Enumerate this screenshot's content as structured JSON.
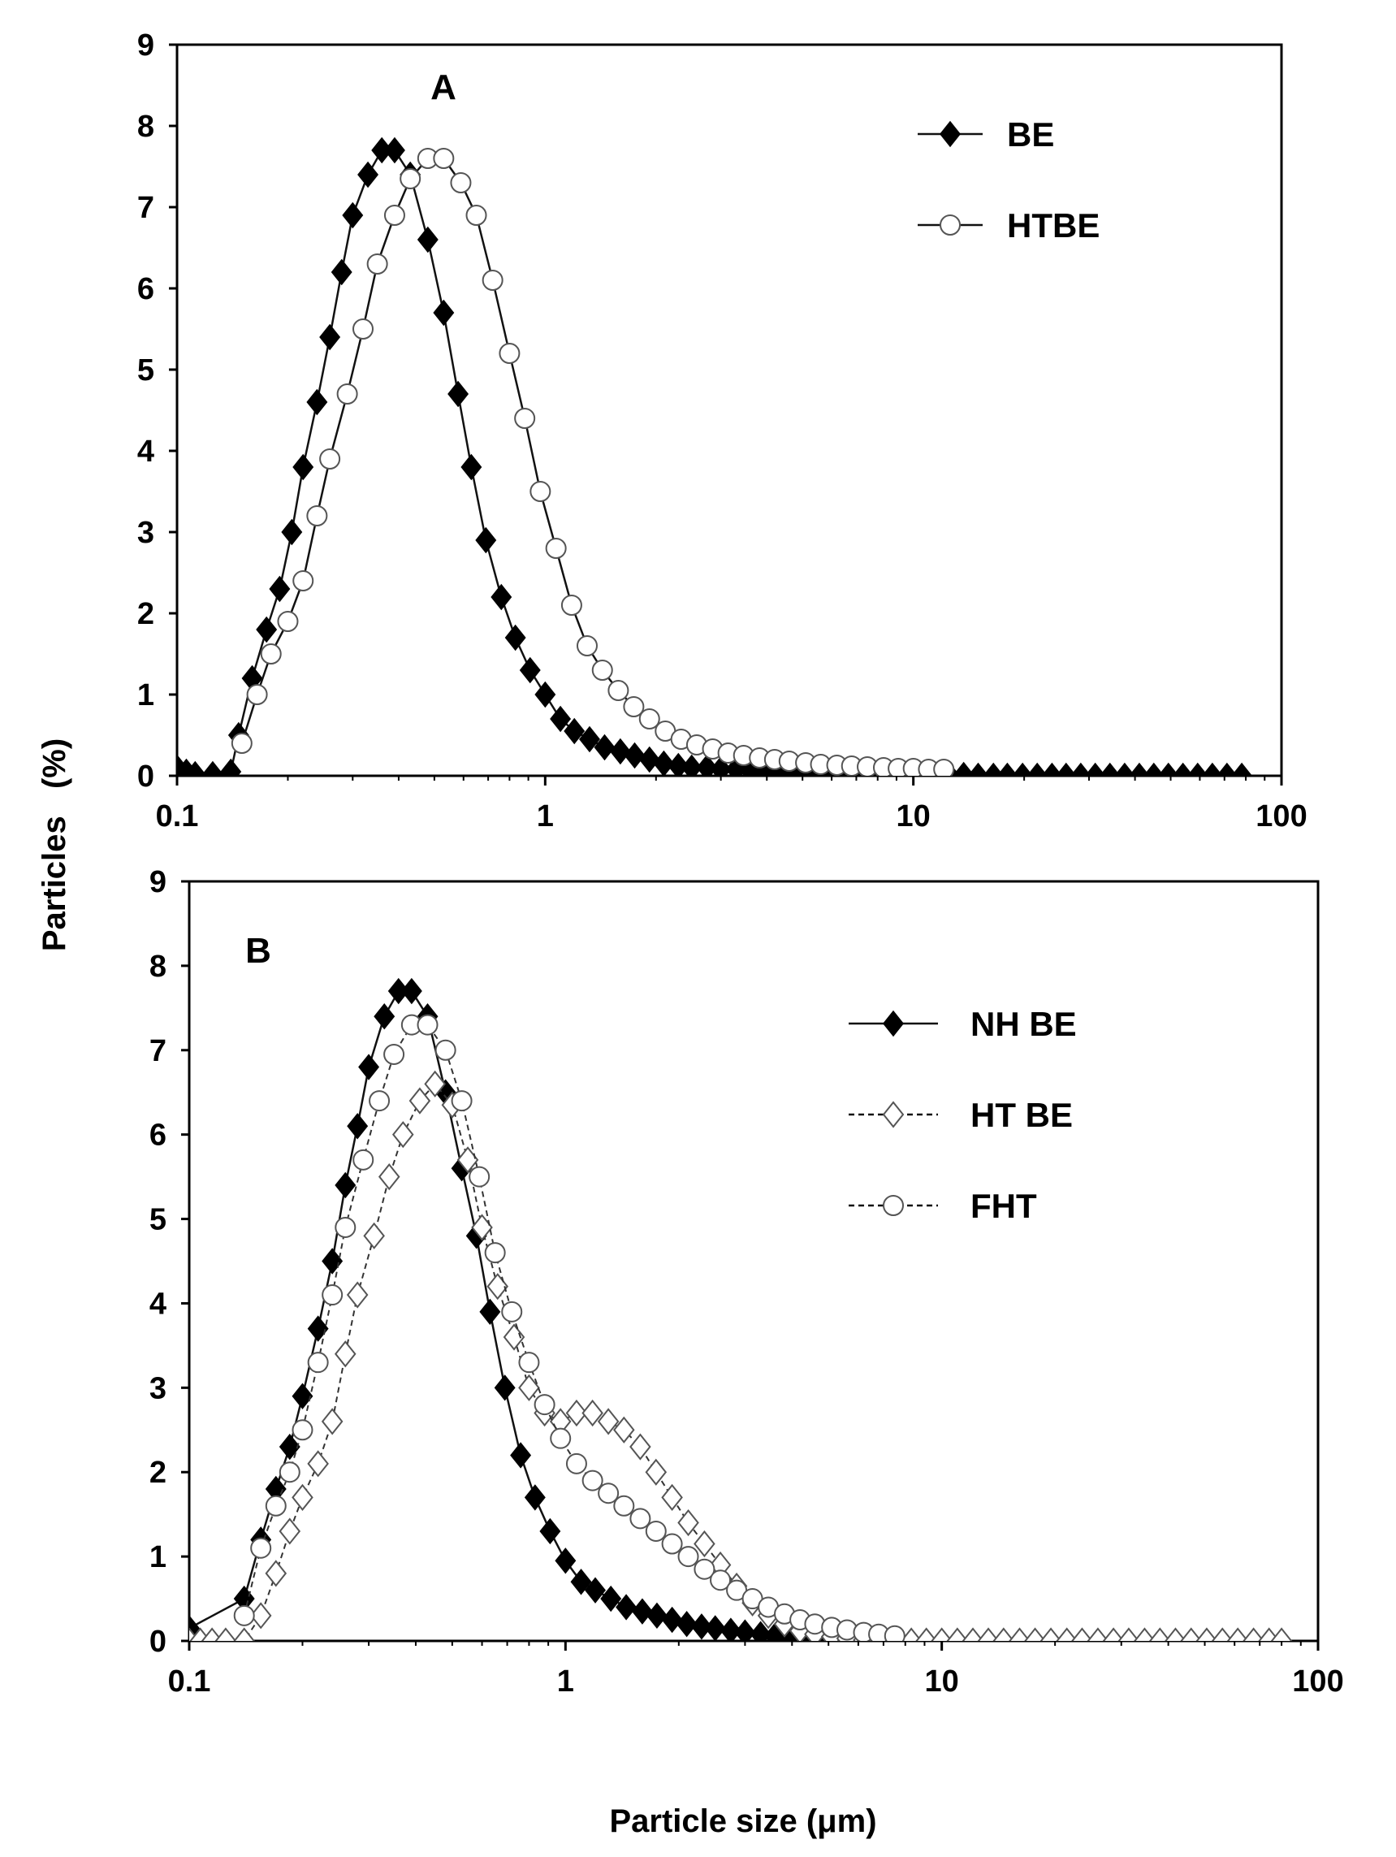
{
  "chart_data": [
    {
      "type": "line",
      "panel_label": "A",
      "xscale": "log",
      "xlim": [
        0.1,
        100
      ],
      "ylim": [
        0,
        9
      ],
      "xticks": [
        {
          "value": 0.1,
          "label": "0.1"
        },
        {
          "value": 1,
          "label": "1"
        },
        {
          "value": 10,
          "label": "10"
        },
        {
          "value": 100,
          "label": "100"
        }
      ],
      "yticks": [
        {
          "value": 0,
          "label": "0"
        },
        {
          "value": 1,
          "label": "1"
        },
        {
          "value": 2,
          "label": "2"
        },
        {
          "value": 3,
          "label": "3"
        },
        {
          "value": 4,
          "label": "4"
        },
        {
          "value": 5,
          "label": "5"
        },
        {
          "value": 6,
          "label": "6"
        },
        {
          "value": 7,
          "label": "7"
        },
        {
          "value": 8,
          "label": "8"
        },
        {
          "value": 9,
          "label": "9"
        }
      ],
      "legend_position": "top-right",
      "series": [
        {
          "name": "BE",
          "marker": "diamond-filled",
          "line": "solid",
          "x": [
            0.1,
            0.106,
            0.112,
            0.125,
            0.14,
            0.147,
            0.16,
            0.175,
            0.19,
            0.205,
            0.22,
            0.24,
            0.26,
            0.28,
            0.3,
            0.33,
            0.36,
            0.39,
            0.43,
            0.48,
            0.53,
            0.58,
            0.63,
            0.69,
            0.76,
            0.83,
            0.91,
            1.0,
            1.1,
            1.2,
            1.32,
            1.45,
            1.6,
            1.75,
            1.92,
            2.1,
            2.3,
            2.5,
            2.75,
            3.0,
            3.3,
            3.6,
            3.9,
            4.3,
            4.7,
            5.1,
            5.6,
            6.1,
            6.7,
            7.3,
            8.0,
            8.7,
            9.5,
            10.4,
            11.4,
            12.5,
            13.7,
            15.0,
            16.5,
            18.0,
            19.8,
            21.7,
            23.8,
            26.0,
            28.5,
            31.2,
            34.2,
            37.5,
            41.1,
            45.0,
            49.3,
            54.0,
            59.2,
            64.9,
            71.1,
            78.0
          ],
          "values": [
            0.1,
            0.05,
            0.02,
            0.02,
            0.05,
            0.5,
            1.2,
            1.8,
            2.3,
            3.0,
            3.8,
            4.6,
            5.4,
            6.2,
            6.9,
            7.4,
            7.7,
            7.7,
            7.4,
            6.6,
            5.7,
            4.7,
            3.8,
            2.9,
            2.2,
            1.7,
            1.3,
            1.0,
            0.7,
            0.55,
            0.45,
            0.35,
            0.3,
            0.25,
            0.2,
            0.15,
            0.12,
            0.1,
            0.1,
            0.08,
            0.08,
            0.07,
            0.06,
            0.05,
            0.05,
            0.04,
            0.03,
            0.02,
            0.02,
            0.02,
            0.01,
            0.01,
            0.01,
            0.01,
            0.01,
            0.01,
            0.01,
            0.0,
            0.0,
            0.0,
            0.0,
            0.0,
            0.0,
            0.0,
            0.0,
            0.0,
            0.0,
            0.0,
            0.0,
            0.0,
            0.0,
            0.0,
            0.0,
            0.0,
            0.0,
            0.0
          ]
        },
        {
          "name": "HTBE",
          "marker": "circle-open",
          "line": "solid",
          "x": [
            0.15,
            0.165,
            0.18,
            0.2,
            0.22,
            0.24,
            0.26,
            0.29,
            0.32,
            0.35,
            0.39,
            0.43,
            0.48,
            0.53,
            0.59,
            0.65,
            0.72,
            0.8,
            0.88,
            0.97,
            1.07,
            1.18,
            1.3,
            1.43,
            1.58,
            1.74,
            1.92,
            2.12,
            2.34,
            2.58,
            2.85,
            3.14,
            3.46,
            3.82,
            4.2,
            4.6,
            5.1,
            5.6,
            6.2,
            6.8,
            7.5,
            8.3,
            9.1,
            10.0,
            11.0,
            12.1
          ],
          "values": [
            0.4,
            1.0,
            1.5,
            1.9,
            2.4,
            3.2,
            3.9,
            4.7,
            5.5,
            6.3,
            6.9,
            7.35,
            7.6,
            7.6,
            7.3,
            6.9,
            6.1,
            5.2,
            4.4,
            3.5,
            2.8,
            2.1,
            1.6,
            1.3,
            1.05,
            0.85,
            0.7,
            0.55,
            0.45,
            0.38,
            0.33,
            0.28,
            0.25,
            0.22,
            0.2,
            0.18,
            0.16,
            0.14,
            0.13,
            0.12,
            0.11,
            0.1,
            0.09,
            0.09,
            0.08,
            0.08
          ]
        }
      ]
    },
    {
      "type": "line",
      "panel_label": "B",
      "xscale": "log",
      "xlim": [
        0.1,
        100
      ],
      "ylim": [
        0,
        9
      ],
      "xlabel": "Particle size (μm)",
      "xticks": [
        {
          "value": 0.1,
          "label": "0.1"
        },
        {
          "value": 1,
          "label": "1"
        },
        {
          "value": 10,
          "label": "10"
        },
        {
          "value": 100,
          "label": "100"
        }
      ],
      "yticks": [
        {
          "value": 0,
          "label": "0"
        },
        {
          "value": 1,
          "label": "1"
        },
        {
          "value": 2,
          "label": "2"
        },
        {
          "value": 3,
          "label": "3"
        },
        {
          "value": 4,
          "label": "4"
        },
        {
          "value": 5,
          "label": "5"
        },
        {
          "value": 6,
          "label": "6"
        },
        {
          "value": 7,
          "label": "7"
        },
        {
          "value": 8,
          "label": "8"
        },
        {
          "value": 9,
          "label": "9"
        }
      ],
      "legend_position": "top-right",
      "series": [
        {
          "name": "NH BE",
          "marker": "diamond-filled",
          "line": "solid",
          "x": [
            0.1,
            0.14,
            0.155,
            0.17,
            0.185,
            0.2,
            0.22,
            0.24,
            0.26,
            0.28,
            0.3,
            0.33,
            0.36,
            0.39,
            0.43,
            0.48,
            0.53,
            0.58,
            0.63,
            0.69,
            0.76,
            0.83,
            0.91,
            1.0,
            1.1,
            1.2,
            1.32,
            1.45,
            1.6,
            1.75,
            1.92,
            2.1,
            2.3,
            2.5,
            2.75,
            3.0,
            3.3,
            3.6,
            3.9,
            4.3,
            4.7,
            5.1,
            5.6,
            6.1,
            6.7,
            7.3
          ],
          "values": [
            0.15,
            0.5,
            1.2,
            1.8,
            2.3,
            2.9,
            3.7,
            4.5,
            5.4,
            6.1,
            6.8,
            7.4,
            7.7,
            7.7,
            7.4,
            6.5,
            5.6,
            4.8,
            3.9,
            3.0,
            2.2,
            1.7,
            1.3,
            0.95,
            0.7,
            0.6,
            0.5,
            0.4,
            0.35,
            0.3,
            0.25,
            0.2,
            0.17,
            0.15,
            0.12,
            0.1,
            0.08,
            0.06,
            0.05,
            0.04,
            0.03,
            0.02,
            0.01,
            0.01,
            0.0,
            0.0
          ]
        },
        {
          "name": "HT BE",
          "marker": "diamond-open",
          "line": "dashed",
          "x": [
            0.1,
            0.107,
            0.115,
            0.125,
            0.14,
            0.155,
            0.17,
            0.185,
            0.2,
            0.22,
            0.24,
            0.26,
            0.28,
            0.31,
            0.34,
            0.37,
            0.41,
            0.45,
            0.5,
            0.55,
            0.6,
            0.66,
            0.73,
            0.8,
            0.88,
            0.97,
            1.07,
            1.18,
            1.3,
            1.43,
            1.58,
            1.74,
            1.92,
            2.12,
            2.34,
            2.58,
            2.85,
            3.14,
            3.46,
            3.82,
            4.2,
            4.6,
            5.1,
            5.6,
            6.2,
            6.8,
            7.5,
            8.3,
            9.1,
            10.0,
            11.0,
            12.1,
            13.3,
            14.6,
            16.1,
            17.7,
            19.5,
            21.5,
            23.6,
            26.0,
            28.6,
            31.4,
            34.6,
            38.0,
            41.8,
            46.0,
            50.6,
            55.7,
            61.2,
            67.4,
            74.1,
            80.0
          ],
          "values": [
            0.0,
            0.0,
            0.0,
            0.0,
            0.0,
            0.3,
            0.8,
            1.3,
            1.7,
            2.1,
            2.6,
            3.4,
            4.1,
            4.8,
            5.5,
            6.0,
            6.4,
            6.6,
            6.35,
            5.7,
            4.9,
            4.2,
            3.6,
            3.0,
            2.7,
            2.6,
            2.7,
            2.7,
            2.6,
            2.5,
            2.3,
            2.0,
            1.7,
            1.4,
            1.15,
            0.9,
            0.65,
            0.45,
            0.3,
            0.2,
            0.12,
            0.08,
            0.05,
            0.03,
            0.01,
            0.0,
            0.0,
            0.0,
            0.0,
            0.0,
            0.0,
            0.0,
            0.0,
            0.0,
            0.0,
            0.0,
            0.0,
            0.0,
            0.0,
            0.0,
            0.0,
            0.0,
            0.0,
            0.0,
            0.0,
            0.0,
            0.0,
            0.0,
            0.0,
            0.0,
            0.0,
            0.0
          ]
        },
        {
          "name": "FHT",
          "marker": "circle-open",
          "line": "dashed",
          "x": [
            0.14,
            0.155,
            0.17,
            0.185,
            0.2,
            0.22,
            0.24,
            0.26,
            0.29,
            0.32,
            0.35,
            0.39,
            0.43,
            0.48,
            0.53,
            0.59,
            0.65,
            0.72,
            0.8,
            0.88,
            0.97,
            1.07,
            1.18,
            1.3,
            1.43,
            1.58,
            1.74,
            1.92,
            2.12,
            2.34,
            2.58,
            2.85,
            3.14,
            3.46,
            3.82,
            4.2,
            4.6,
            5.1,
            5.6,
            6.2,
            6.8,
            7.5
          ],
          "values": [
            0.3,
            1.1,
            1.6,
            2.0,
            2.5,
            3.3,
            4.1,
            4.9,
            5.7,
            6.4,
            6.95,
            7.3,
            7.3,
            7.0,
            6.4,
            5.5,
            4.6,
            3.9,
            3.3,
            2.8,
            2.4,
            2.1,
            1.9,
            1.75,
            1.6,
            1.45,
            1.3,
            1.15,
            1.0,
            0.85,
            0.72,
            0.6,
            0.5,
            0.4,
            0.32,
            0.25,
            0.2,
            0.16,
            0.13,
            0.1,
            0.08,
            0.06
          ]
        }
      ]
    }
  ],
  "shared_ylabel": "Particles   (%)"
}
